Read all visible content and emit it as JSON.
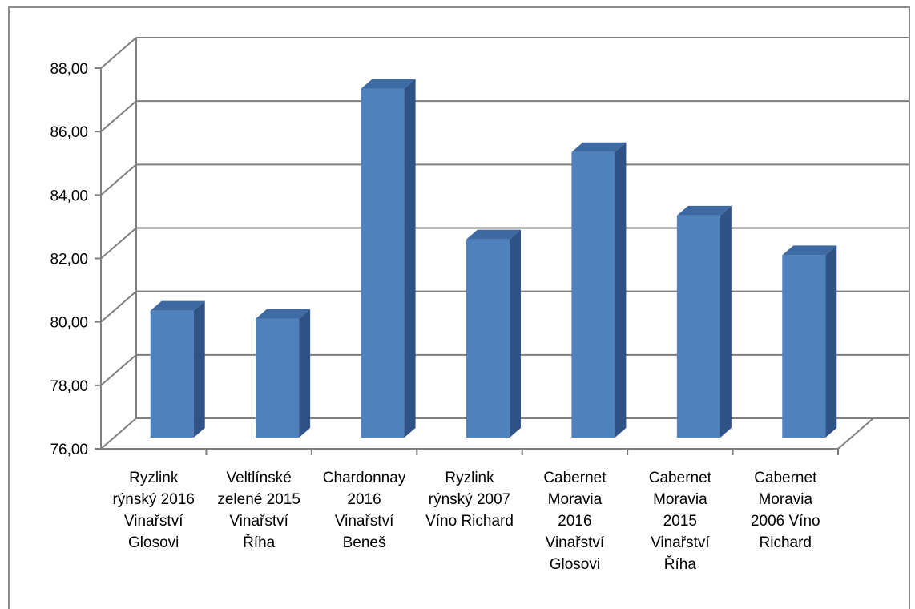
{
  "chart_data": {
    "type": "bar",
    "style": "3d-column",
    "categories": [
      [
        "Ryzlink",
        "rýnský 2016",
        "Vinařství",
        "Glosovi"
      ],
      [
        "Veltlínské",
        "zelené 2015",
        "Vinařství",
        "Říha"
      ],
      [
        "Chardonnay",
        "2016",
        "Vinařství",
        "Beneš"
      ],
      [
        "Ryzlink",
        "rýnský 2007",
        "Víno Richard"
      ],
      [
        "Cabernet",
        "Moravia",
        "2016",
        "Vinařství",
        "Glosovi"
      ],
      [
        "Cabernet",
        "Moravia",
        "2015",
        "Vinařství",
        "Říha"
      ],
      [
        "Cabernet",
        "Moravia",
        "2006 Víno",
        "Richard"
      ]
    ],
    "values": [
      80.0,
      79.75,
      87.0,
      82.25,
      85.0,
      83.0,
      81.75
    ],
    "ylim": [
      76,
      88
    ],
    "yticks": [
      "76,00",
      "78,00",
      "80,00",
      "82,00",
      "84,00",
      "86,00",
      "88,00"
    ],
    "grid": true,
    "legend": "none",
    "colors": {
      "bar_front": "#4f81bd",
      "bar_side": "#2f5287",
      "bar_top": "#3d6aa3",
      "grid": "#7f7f7f",
      "axis": "#7f7f7f"
    }
  }
}
